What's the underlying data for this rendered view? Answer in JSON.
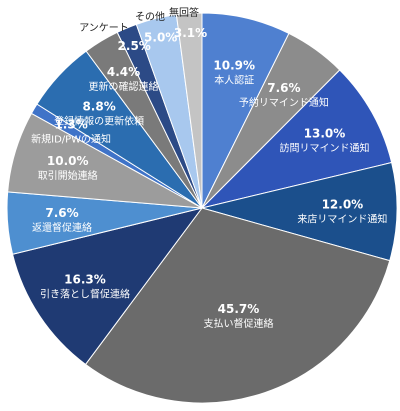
{
  "chart_data": {
    "type": "pie",
    "title": "",
    "slices": [
      {
        "label": "本人認証",
        "value": 10.9,
        "display": "10.9%",
        "color": "#4f80d0"
      },
      {
        "label": "予約リマインド通知",
        "value": 7.6,
        "display": "7.6%",
        "color": "#8c8c8c"
      },
      {
        "label": "訪問リマインド通知",
        "value": 13.0,
        "display": "13.0%",
        "color": "#2f55b8"
      },
      {
        "label": "来店リマインド通知",
        "value": 12.0,
        "display": "12.0%",
        "color": "#1b4f8c"
      },
      {
        "label": "支払い督促連絡",
        "value": 45.7,
        "display": "45.7%",
        "color": "#6b6b6b"
      },
      {
        "label": "引き落とし督促連絡",
        "value": 16.3,
        "display": "16.3%",
        "color": "#1f3a73"
      },
      {
        "label": "返還督促連絡",
        "value": 7.6,
        "display": "7.6%",
        "color": "#4e8fd0"
      },
      {
        "label": "取引開始連絡",
        "value": 10.0,
        "display": "10.0%",
        "color": "#9c9c9c"
      },
      {
        "label": "新規ID/PWの通知",
        "value": 1.3,
        "display": "1.3%",
        "color": "#3f73c8"
      },
      {
        "label": "登録情報の更新依頼",
        "value": 8.8,
        "display": "8.8%",
        "color": "#2b6db0"
      },
      {
        "label": "更新の確認連絡",
        "value": 4.4,
        "display": "4.4%",
        "color": "#7a7a7a"
      },
      {
        "label": "アンケート",
        "value": 2.5,
        "display": "2.5%",
        "color": "#2c4a86"
      },
      {
        "label": "その他",
        "value": 5.0,
        "display": "5.0%",
        "color": "#a8c8ee"
      },
      {
        "label": "無回答",
        "value": 3.1,
        "display": "3.1%",
        "color": "#c4c4c4"
      }
    ]
  }
}
